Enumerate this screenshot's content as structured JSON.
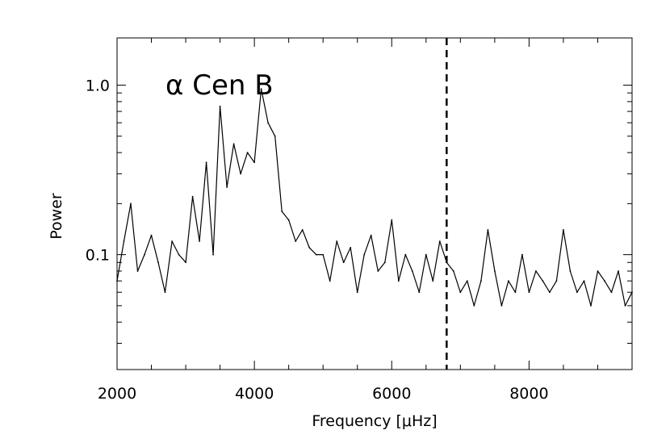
{
  "chart_data": {
    "type": "line",
    "title": "",
    "annotation": "α Cen B",
    "xlabel": "Frequency [μHz]",
    "ylabel": "Power",
    "x_scale": "linear",
    "y_scale": "log",
    "xlim": [
      2000,
      9500
    ],
    "ylim": [
      0.021,
      1.9
    ],
    "x_ticks": [
      2000,
      4000,
      6000,
      8000
    ],
    "x_tick_labels": [
      "2000",
      "4000",
      "6000",
      "8000"
    ],
    "y_ticks": [
      0.1,
      1.0
    ],
    "y_tick_labels": [
      "0.1",
      "1.0"
    ],
    "grid": false,
    "legend": "none",
    "line_color": "#000000",
    "vertical_reference_line": {
      "x": 6800,
      "style": "dashed"
    },
    "series": [
      {
        "x": [
          2000,
          2100,
          2200,
          2300,
          2400,
          2500,
          2600,
          2700,
          2800,
          2900,
          3000,
          3100,
          3200,
          3300,
          3400,
          3500,
          3600,
          3700,
          3800,
          3900,
          4000,
          4100,
          4200,
          4300,
          4400,
          4500,
          4600,
          4700,
          4800,
          4900,
          5000,
          5100,
          5200,
          5300,
          5400,
          5500,
          5600,
          5700,
          5800,
          5900,
          6000,
          6100,
          6200,
          6300,
          6400,
          6500,
          6600,
          6700,
          6800,
          6900,
          7000,
          7100,
          7200,
          7300,
          7400,
          7500,
          7600,
          7700,
          7800,
          7900,
          8000,
          8100,
          8200,
          8300,
          8400,
          8500,
          8600,
          8700,
          8800,
          8900,
          9000,
          9100,
          9200,
          9300,
          9400,
          9500
        ],
        "values": [
          0.07,
          0.12,
          0.2,
          0.08,
          0.1,
          0.13,
          0.09,
          0.06,
          0.12,
          0.1,
          0.09,
          0.22,
          0.12,
          0.35,
          0.1,
          0.75,
          0.25,
          0.45,
          0.3,
          0.4,
          0.35,
          0.95,
          0.6,
          0.5,
          0.18,
          0.16,
          0.12,
          0.14,
          0.11,
          0.1,
          0.1,
          0.07,
          0.12,
          0.09,
          0.11,
          0.06,
          0.1,
          0.13,
          0.08,
          0.09,
          0.16,
          0.07,
          0.1,
          0.08,
          0.06,
          0.1,
          0.07,
          0.12,
          0.09,
          0.08,
          0.06,
          0.07,
          0.05,
          0.07,
          0.14,
          0.08,
          0.05,
          0.07,
          0.06,
          0.1,
          0.06,
          0.08,
          0.07,
          0.06,
          0.07,
          0.14,
          0.08,
          0.06,
          0.07,
          0.05,
          0.08,
          0.07,
          0.06,
          0.08,
          0.05,
          0.06
        ]
      }
    ]
  }
}
